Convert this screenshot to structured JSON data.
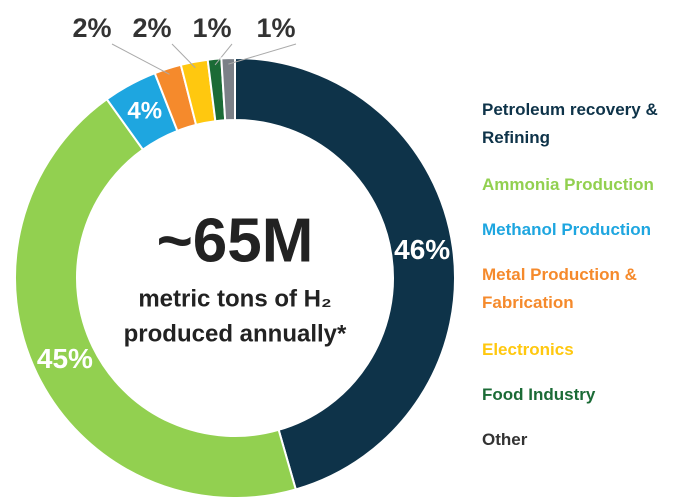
{
  "chart_data": {
    "type": "donut",
    "center_text": [
      "~65M",
      "metric tons of H₂",
      "produced annually*"
    ],
    "series": [
      {
        "name": "Petroleum recovery & Refining",
        "color": "#0e3349",
        "values": [
          46
        ],
        "value_labels": [
          "46%"
        ]
      },
      {
        "name": "Ammonia Production",
        "color": "#92d050",
        "values": [
          45
        ],
        "value_labels": [
          "45%"
        ]
      },
      {
        "name": "Methanol Production",
        "color": "#1ea6e0",
        "values": [
          4
        ],
        "value_labels": [
          "4%"
        ]
      },
      {
        "name": "Metal Production & Fabrication",
        "color": "#f58a2c",
        "values": [
          2
        ],
        "value_labels": [
          "2%"
        ]
      },
      {
        "name": "Electronics",
        "color": "#ffc80f",
        "values": [
          2
        ],
        "value_labels": [
          "2%"
        ]
      },
      {
        "name": "Food Industry",
        "color": "#1b6b36",
        "values": [
          1
        ],
        "value_labels": [
          "1%"
        ]
      },
      {
        "name": "Other",
        "color": "#7b8087",
        "values": [
          1
        ],
        "value_labels": [
          "1%"
        ]
      }
    ],
    "legend": "right"
  }
}
